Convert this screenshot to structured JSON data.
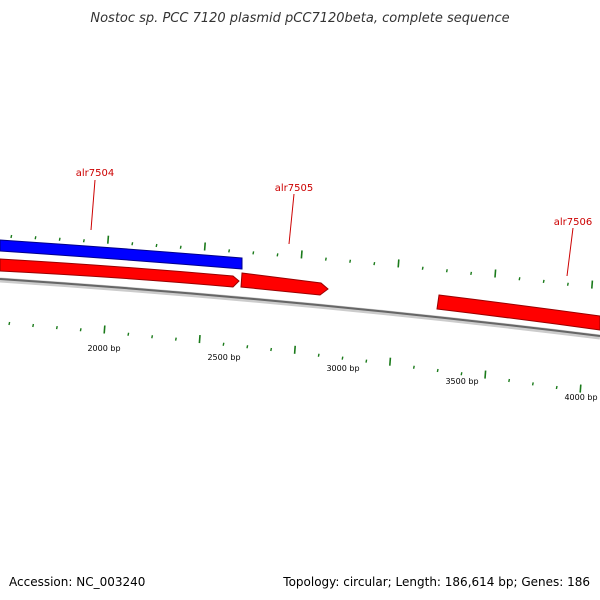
{
  "title": "Nostoc sp. PCC 7120 plasmid pCC7120beta, complete sequence",
  "colors": {
    "forward_gene": "#ff0000",
    "reverse_gene": "#0000ff",
    "backbone": "#808080",
    "ticks": "#1a7a1a",
    "labels": "#cc0000"
  },
  "genes": [
    {
      "name": "alr7504",
      "strand": "reverse"
    },
    {
      "name": "alr7505",
      "strand": "forward"
    },
    {
      "name": "alr7506",
      "strand": "forward"
    }
  ],
  "scale": {
    "ticks": [
      "2000 bp",
      "2500 bp",
      "3000 bp",
      "3500 bp",
      "4000 bp"
    ]
  },
  "footer": {
    "accession": "Accession: NC_003240",
    "summary": "Topology: circular; Length: 186,614 bp; Genes: 186"
  }
}
